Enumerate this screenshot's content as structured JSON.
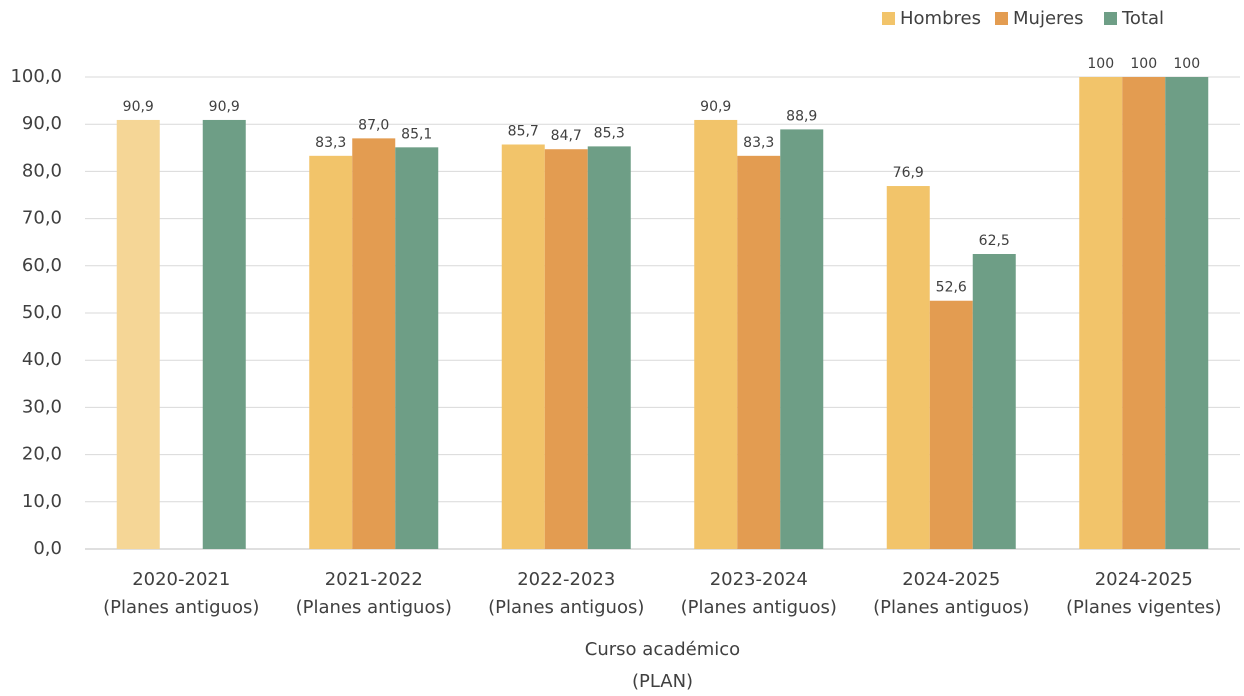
{
  "chart_data": {
    "type": "bar",
    "categories": [
      [
        "2020-2021",
        "(Planes antiguos)"
      ],
      [
        "2021-2022",
        "(Planes antiguos)"
      ],
      [
        "2022-2023",
        "(Planes antiguos)"
      ],
      [
        "2023-2024",
        "(Planes antiguos)"
      ],
      [
        "2024-2025",
        "(Planes antiguos)"
      ],
      [
        "2024-2025",
        "(Planes vigentes)"
      ]
    ],
    "xlabel": [
      "Curso académico",
      "(PLAN)"
    ],
    "series": [
      {
        "name": "Hombres",
        "color": "#f2c46a",
        "colors": [
          "#f5d696",
          "#f2c46a",
          "#f2c46a",
          "#f2c46a",
          "#f2c46a",
          "#f2c46a"
        ],
        "values": [
          90.9,
          83.3,
          85.7,
          90.9,
          76.9,
          100
        ],
        "value_labels": [
          "90,9",
          "83,3",
          "85,7",
          "90,9",
          "76,9",
          "100"
        ]
      },
      {
        "name": "Mujeres",
        "color": "#e39c51",
        "values": [
          null,
          87.0,
          84.7,
          83.3,
          52.6,
          100
        ],
        "value_labels": [
          null,
          "87,0",
          "84,7",
          "83,3",
          "52,6",
          "100"
        ]
      },
      {
        "name": "Total",
        "color": "#6e9e86",
        "values": [
          90.9,
          85.1,
          85.3,
          88.9,
          62.5,
          100
        ],
        "value_labels": [
          "90,9",
          "85,1",
          "85,3",
          "88,9",
          "62,5",
          "100"
        ]
      }
    ],
    "ylim": [
      0,
      100
    ],
    "yticks": [
      {
        "value": 0,
        "label": "0,0"
      },
      {
        "value": 10,
        "label": "10,0"
      },
      {
        "value": 20,
        "label": "20,0"
      },
      {
        "value": 30,
        "label": "30,0"
      },
      {
        "value": 40,
        "label": "40,0"
      },
      {
        "value": 50,
        "label": "50,0"
      },
      {
        "value": 60,
        "label": "60,0"
      },
      {
        "value": 70,
        "label": "70,0"
      },
      {
        "value": 80,
        "label": "80,0"
      },
      {
        "value": 90,
        "label": "90,0"
      },
      {
        "value": 100,
        "label": "100,0"
      }
    ],
    "grid": true,
    "legend": "top-right"
  }
}
